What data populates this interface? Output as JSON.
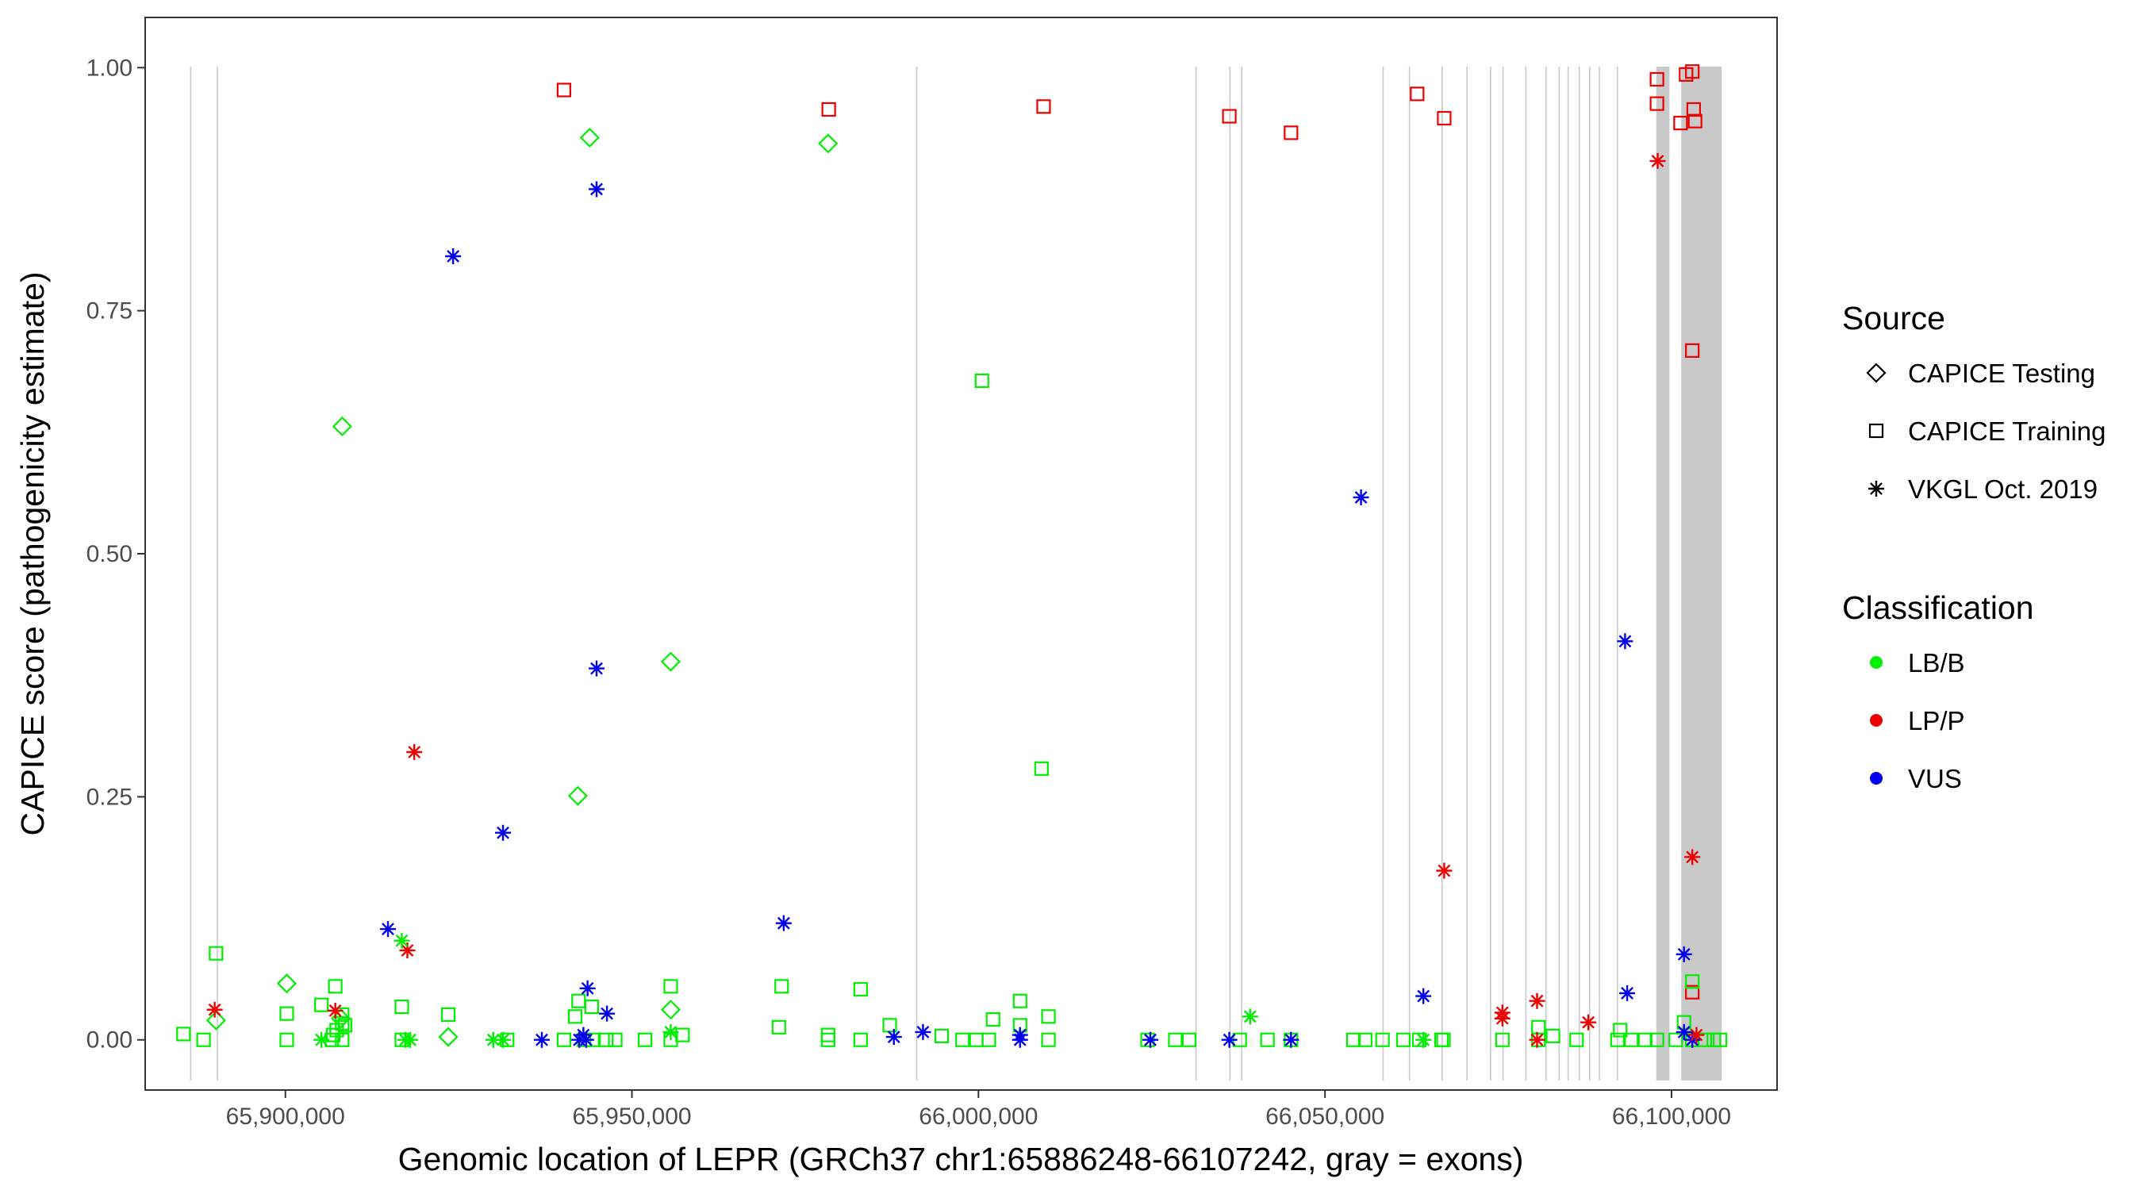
{
  "chart_data": {
    "type": "scatter",
    "title": "",
    "xlabel": "Genomic location of LEPR (GRCh37 chr1:65886248-66107242, gray = exons)",
    "ylabel": "CAPICE score (pathogenicity estimate)",
    "xlim": [
      65880000,
      66115000
    ],
    "ylim": [
      -0.05,
      1.05
    ],
    "x_ticks": [
      65900000,
      65950000,
      66000000,
      66050000,
      66100000
    ],
    "x_tick_labels": [
      "65,900,000",
      "65,950,000",
      "66,000,000",
      "66,050,000",
      "66,100,000"
    ],
    "y_ticks": [
      0,
      0.25,
      0.5,
      0.75,
      1
    ],
    "y_tick_labels": [
      "0.00",
      "0.25",
      "0.50",
      "0.75",
      "1.00"
    ],
    "grid": false,
    "exons": [
      [
        65886248,
        65886400
      ],
      [
        65890100,
        65890250
      ],
      [
        65991000,
        65991150
      ],
      [
        66031300,
        66031450
      ],
      [
        66036200,
        66036350
      ],
      [
        66037900,
        66038050
      ],
      [
        66058300,
        66058450
      ],
      [
        66062100,
        66062250
      ],
      [
        66066800,
        66067000
      ],
      [
        66070400,
        66070550
      ],
      [
        66073800,
        66073950
      ],
      [
        66075600,
        66075750
      ],
      [
        66078900,
        66079050
      ],
      [
        66081800,
        66081950
      ],
      [
        66083700,
        66083850
      ],
      [
        66085000,
        66085150
      ],
      [
        66086600,
        66086750
      ],
      [
        66088100,
        66088250
      ],
      [
        66089500,
        66089650
      ],
      [
        66092100,
        66092250
      ],
      [
        66097800,
        66099700
      ],
      [
        66101400,
        66107242
      ]
    ],
    "legend": {
      "source_title": "Source",
      "source_items": [
        {
          "label": "CAPICE Testing",
          "shape": "diamond"
        },
        {
          "label": "CAPICE Training",
          "shape": "square"
        },
        {
          "label": "VKGL Oct. 2019",
          "shape": "asterisk"
        }
      ],
      "class_title": "Classification",
      "class_items": [
        {
          "label": "LB/B",
          "color": "#00ee00"
        },
        {
          "label": "LP/P",
          "color": "#ee0000"
        },
        {
          "label": "VUS",
          "color": "#0000ee"
        }
      ]
    },
    "colors": {
      "LB/B": "#00ee00",
      "LP/P": "#ee0000",
      "VUS": "#0000ee"
    },
    "series": [
      {
        "name": "CAPICE Training LP/P",
        "source": "CAPICE Training",
        "classification": "LP/P",
        "points": [
          [
            65940200,
            0.977
          ],
          [
            65978400,
            0.957
          ],
          [
            66009400,
            0.96
          ],
          [
            66036200,
            0.95
          ],
          [
            66045100,
            0.933
          ],
          [
            66063300,
            0.973
          ],
          [
            66067200,
            0.948
          ],
          [
            66097900,
            0.988
          ],
          [
            66097900,
            0.963
          ],
          [
            66101300,
            0.943
          ],
          [
            66102100,
            0.993
          ],
          [
            66103000,
            0.996
          ],
          [
            66103200,
            0.957
          ],
          [
            66103400,
            0.945
          ],
          [
            66103000,
            0.709
          ],
          [
            66103000,
            0.049
          ]
        ]
      },
      {
        "name": "CAPICE Testing LB/B",
        "source": "CAPICE Testing",
        "classification": "LB/B",
        "points": [
          [
            65943900,
            0.928
          ],
          [
            65978300,
            0.922
          ],
          [
            65908200,
            0.631
          ],
          [
            65955600,
            0.389
          ],
          [
            65942200,
            0.251
          ],
          [
            65900200,
            0.058
          ],
          [
            65955600,
            0.031
          ],
          [
            65923500,
            0.003
          ],
          [
            65890000,
            0.02
          ],
          [
            65908000,
            0.022
          ]
        ]
      },
      {
        "name": "CAPICE Training LB/B",
        "source": "CAPICE Training",
        "classification": "LB/B",
        "points": [
          [
            66000500,
            0.678
          ],
          [
            66009100,
            0.279
          ],
          [
            65890000,
            0.089
          ],
          [
            65971600,
            0.055
          ],
          [
            65955600,
            0.055
          ],
          [
            65907200,
            0.055
          ],
          [
            65983000,
            0.052
          ],
          [
            66006000,
            0.04
          ],
          [
            65942300,
            0.04
          ],
          [
            65905200,
            0.036
          ],
          [
            65916800,
            0.034
          ],
          [
            65944200,
            0.034
          ],
          [
            65900200,
            0.027
          ],
          [
            65923500,
            0.026
          ],
          [
            65908200,
            0.026
          ],
          [
            65941800,
            0.024
          ],
          [
            66010100,
            0.024
          ],
          [
            66002100,
            0.021
          ],
          [
            65908200,
            0.017
          ],
          [
            65987200,
            0.015
          ],
          [
            65908600,
            0.015
          ],
          [
            65971200,
            0.013
          ],
          [
            66006000,
            0.015
          ],
          [
            66080800,
            0.013
          ],
          [
            66101800,
            0.018
          ],
          [
            66103000,
            0.06
          ],
          [
            66092600,
            0.01
          ],
          [
            65907400,
            0.01
          ],
          [
            65885300,
            0.006
          ],
          [
            65957300,
            0.005
          ],
          [
            65978300,
            0.005
          ],
          [
            65906900,
            0.005
          ],
          [
            65994700,
            0.004
          ],
          [
            66082900,
            0.004
          ],
          [
            65888200,
            0.0
          ],
          [
            65900200,
            0.0
          ],
          [
            65906700,
            0.0
          ],
          [
            65908200,
            0.0
          ],
          [
            65916800,
            0.0
          ],
          [
            65932000,
            0.0
          ],
          [
            65940200,
            0.0
          ],
          [
            65943100,
            0.0
          ],
          [
            65944300,
            0.0
          ],
          [
            65946300,
            0.0
          ],
          [
            65947600,
            0.0
          ],
          [
            65951900,
            0.0
          ],
          [
            65955600,
            0.0
          ],
          [
            65978300,
            0.0
          ],
          [
            65983000,
            0.0
          ],
          [
            65997700,
            0.0
          ],
          [
            65999700,
            0.0
          ],
          [
            66001500,
            0.0
          ],
          [
            66010100,
            0.0
          ],
          [
            66024400,
            0.0
          ],
          [
            66028400,
            0.0
          ],
          [
            66030400,
            0.0
          ],
          [
            66037700,
            0.0
          ],
          [
            66041700,
            0.0
          ],
          [
            66045100,
            0.0
          ],
          [
            66054100,
            0.0
          ],
          [
            66055800,
            0.0
          ],
          [
            66058300,
            0.0
          ],
          [
            66061300,
            0.0
          ],
          [
            66063600,
            0.0
          ],
          [
            66066800,
            0.0
          ],
          [
            66067100,
            0.0
          ],
          [
            66075600,
            0.0
          ],
          [
            66080800,
            0.0
          ],
          [
            66086300,
            0.0
          ],
          [
            66092200,
            0.0
          ],
          [
            66094200,
            0.0
          ],
          [
            66096200,
            0.0
          ],
          [
            66097900,
            0.0
          ],
          [
            66100600,
            0.0
          ],
          [
            66103000,
            0.0
          ],
          [
            66104800,
            0.0
          ],
          [
            66106100,
            0.0
          ],
          [
            66107000,
            0.0
          ]
        ]
      },
      {
        "name": "VKGL Oct. 2019 VUS",
        "source": "VKGL Oct. 2019",
        "classification": "VUS",
        "points": [
          [
            65944900,
            0.875
          ],
          [
            65924200,
            0.806
          ],
          [
            66055200,
            0.558
          ],
          [
            66093300,
            0.41
          ],
          [
            65944900,
            0.382
          ],
          [
            65931400,
            0.213
          ],
          [
            65971900,
            0.12
          ],
          [
            65914800,
            0.114
          ],
          [
            66101800,
            0.088
          ],
          [
            65943600,
            0.053
          ],
          [
            66064200,
            0.045
          ],
          [
            66093600,
            0.048
          ],
          [
            65946400,
            0.027
          ],
          [
            65992000,
            0.008
          ],
          [
            65943000,
            0.005
          ],
          [
            66006000,
            0.005
          ],
          [
            66101800,
            0.008
          ],
          [
            65937000,
            0.0
          ],
          [
            65942400,
            0.0
          ],
          [
            65943400,
            0.0
          ],
          [
            65987800,
            0.003
          ],
          [
            66006000,
            0.0
          ],
          [
            66024800,
            0.0
          ],
          [
            66036200,
            0.0
          ],
          [
            66045100,
            0.0
          ],
          [
            66103000,
            0.0
          ]
        ]
      },
      {
        "name": "VKGL Oct. 2019 LP/P",
        "source": "VKGL Oct. 2019",
        "classification": "LP/P",
        "points": [
          [
            66098000,
            0.904
          ],
          [
            65918600,
            0.296
          ],
          [
            66103000,
            0.188
          ],
          [
            66067200,
            0.174
          ],
          [
            65917600,
            0.092
          ],
          [
            66080600,
            0.04
          ],
          [
            65889800,
            0.031
          ],
          [
            65907200,
            0.03
          ],
          [
            66075600,
            0.028
          ],
          [
            66075600,
            0.022
          ],
          [
            66088000,
            0.018
          ],
          [
            66103600,
            0.005
          ],
          [
            66080600,
            0.0
          ]
        ]
      },
      {
        "name": "VKGL Oct. 2019 LB/B",
        "source": "VKGL Oct. 2019",
        "classification": "LB/B",
        "points": [
          [
            65916800,
            0.102
          ],
          [
            66039200,
            0.024
          ],
          [
            65955600,
            0.008
          ],
          [
            65905200,
            0.0
          ],
          [
            65917300,
            0.0
          ],
          [
            65918000,
            0.0
          ],
          [
            65930000,
            0.0
          ],
          [
            65931400,
            0.0
          ],
          [
            66064200,
            0.0
          ]
        ]
      }
    ]
  }
}
